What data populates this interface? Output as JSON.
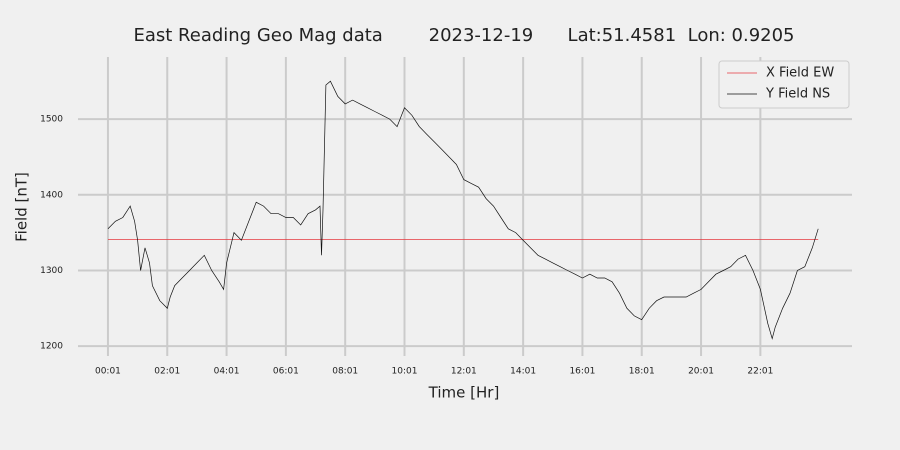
{
  "chart_data": {
    "type": "line",
    "title": "East Reading Geo Mag data        2023-12-19      Lat:51.4581  Lon: 0.9205",
    "xlabel": "Time  [Hr]",
    "ylabel": "Field  [nT]",
    "xlim": [
      -1.01,
      25.09
    ],
    "ylim": [
      1187,
      1582
    ],
    "xticks": [
      {
        "value": 0,
        "label": "00:01"
      },
      {
        "value": 2,
        "label": "02:01"
      },
      {
        "value": 4,
        "label": "04:01"
      },
      {
        "value": 6,
        "label": "06:01"
      },
      {
        "value": 8,
        "label": "08:01"
      },
      {
        "value": 10,
        "label": "10:01"
      },
      {
        "value": 12,
        "label": "12:01"
      },
      {
        "value": 14,
        "label": "14:01"
      },
      {
        "value": 16,
        "label": "16:01"
      },
      {
        "value": 18,
        "label": "18:01"
      },
      {
        "value": 20,
        "label": "20:01"
      },
      {
        "value": 22,
        "label": "22:01"
      }
    ],
    "yticks": [
      1200,
      1300,
      1400,
      1500
    ],
    "grid": true,
    "legend": "upper right",
    "series": [
      {
        "name": "X Field EW",
        "color": "#e5393f",
        "x": [
          0,
          23.95
        ],
        "values": [
          1341,
          1341
        ]
      },
      {
        "name": "Y Field NS",
        "color": "#111111",
        "x": [
          0,
          0.25,
          0.5,
          0.75,
          0.9,
          1.0,
          1.1,
          1.25,
          1.4,
          1.5,
          1.75,
          2.0,
          2.1,
          2.25,
          2.5,
          2.75,
          3.0,
          3.25,
          3.5,
          3.75,
          3.9,
          4.0,
          4.25,
          4.5,
          4.75,
          5.0,
          5.25,
          5.5,
          5.75,
          6.0,
          6.25,
          6.5,
          6.75,
          7.0,
          7.15,
          7.2,
          7.25,
          7.35,
          7.5,
          7.75,
          8.0,
          8.25,
          8.5,
          8.75,
          9.0,
          9.25,
          9.5,
          9.75,
          10.0,
          10.25,
          10.5,
          10.75,
          11.0,
          11.25,
          11.5,
          11.75,
          12.0,
          12.25,
          12.5,
          12.75,
          13.0,
          13.25,
          13.5,
          13.75,
          14.0,
          14.25,
          14.5,
          14.75,
          15.0,
          15.25,
          15.5,
          15.75,
          16.0,
          16.25,
          16.5,
          16.75,
          17.0,
          17.25,
          17.5,
          17.75,
          18.0,
          18.25,
          18.5,
          18.75,
          19.0,
          19.25,
          19.5,
          19.75,
          20.0,
          20.25,
          20.5,
          20.75,
          21.0,
          21.25,
          21.5,
          21.75,
          22.0,
          22.25,
          22.4,
          22.5,
          22.75,
          23.0,
          23.25,
          23.5,
          23.75,
          23.95
        ],
        "values": [
          1355,
          1365,
          1370,
          1385,
          1365,
          1340,
          1300,
          1330,
          1310,
          1280,
          1260,
          1250,
          1265,
          1280,
          1290,
          1300,
          1310,
          1320,
          1300,
          1285,
          1275,
          1310,
          1350,
          1340,
          1365,
          1390,
          1385,
          1375,
          1375,
          1370,
          1370,
          1360,
          1375,
          1380,
          1385,
          1320,
          1380,
          1545,
          1550,
          1530,
          1520,
          1525,
          1520,
          1515,
          1510,
          1505,
          1500,
          1490,
          1515,
          1505,
          1490,
          1480,
          1470,
          1460,
          1450,
          1440,
          1420,
          1415,
          1410,
          1395,
          1385,
          1370,
          1355,
          1350,
          1340,
          1330,
          1320,
          1315,
          1310,
          1305,
          1300,
          1295,
          1290,
          1295,
          1290,
          1290,
          1285,
          1270,
          1250,
          1240,
          1235,
          1250,
          1260,
          1265,
          1265,
          1265,
          1265,
          1270,
          1275,
          1285,
          1295,
          1300,
          1305,
          1315,
          1320,
          1300,
          1275,
          1230,
          1210,
          1225,
          1250,
          1270,
          1300,
          1305,
          1330,
          1355
        ]
      }
    ]
  }
}
